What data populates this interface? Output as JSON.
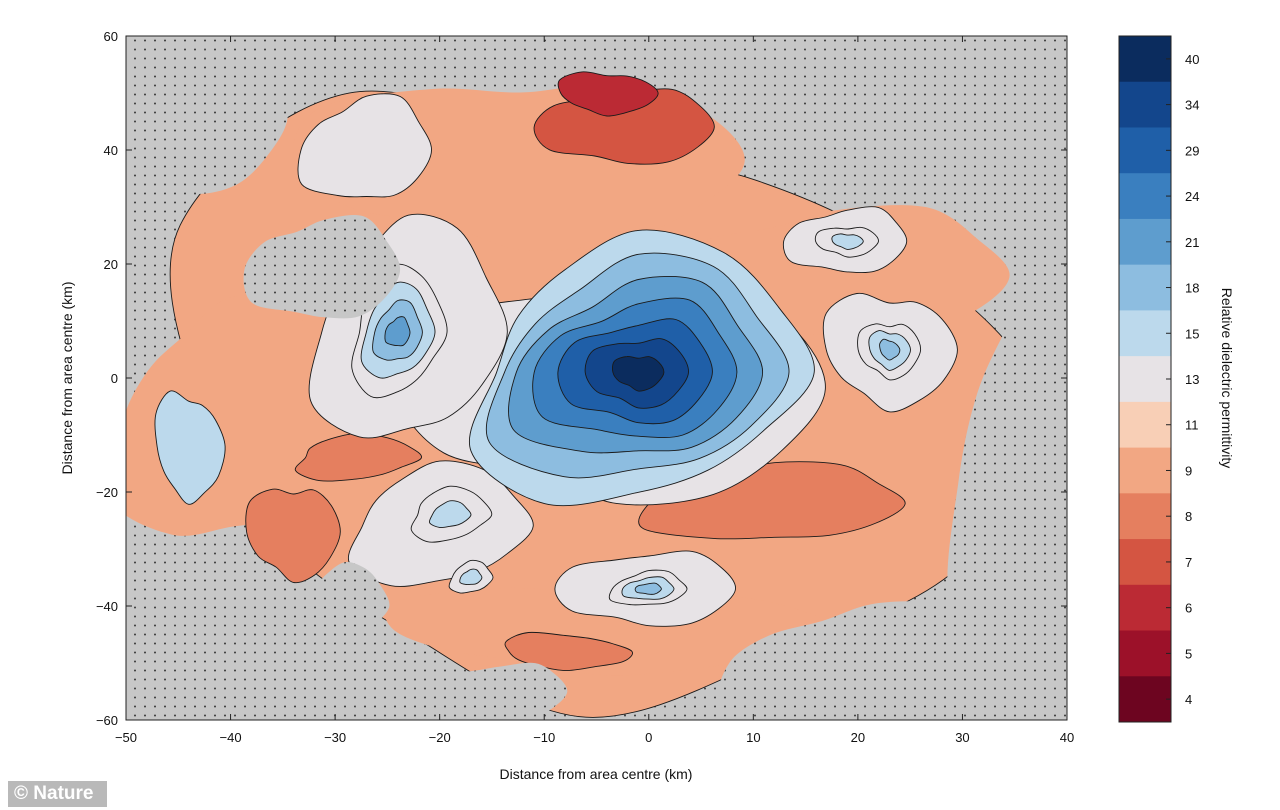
{
  "chart_data": {
    "type": "heatmap",
    "subtype": "filled-contour-map",
    "title": "",
    "xlabel": "Distance from area centre (km)",
    "ylabel": "Distance from area centre (km)",
    "xlim": [
      -50,
      40
    ],
    "ylim": [
      -60,
      60
    ],
    "xticks": [
      -50,
      -40,
      -30,
      -20,
      -10,
      0,
      10,
      20,
      30,
      40
    ],
    "yticks": [
      60,
      40,
      20,
      0,
      -20,
      -40,
      -60
    ],
    "colorbar": {
      "label": "Relative dielectric permittivity",
      "levels": [
        40,
        34,
        29,
        24,
        21,
        18,
        15,
        13,
        11,
        9,
        8,
        7,
        6,
        5,
        4
      ],
      "colors": [
        "#0b2c5e",
        "#13468c",
        "#1f5fa8",
        "#3a7fbf",
        "#5e9dce",
        "#8dbde0",
        "#bcd9ec",
        "#e7e3e6",
        "#f8cfb6",
        "#f2a783",
        "#e57f5f",
        "#d45542",
        "#bb2a34",
        "#9c1129",
        "#6d0520"
      ]
    },
    "no_data_color": "#c7c7c7",
    "features": [
      {
        "name": "central high-permittivity anomaly",
        "x": 0,
        "y": 0,
        "peak": 40
      },
      {
        "name": "western anomaly",
        "x": -24,
        "y": 8,
        "peak": 21
      },
      {
        "name": "eastern anomaly",
        "x": 23,
        "y": 5,
        "peak": 18
      },
      {
        "name": "southwest anomaly",
        "x": -20,
        "y": -24,
        "peak": 15
      },
      {
        "name": "southern anomaly",
        "x": 0,
        "y": -38,
        "peak": 18
      },
      {
        "name": "northeast anomaly",
        "x": 20,
        "y": 24,
        "peak": 15
      },
      {
        "name": "south-central small anomaly",
        "x": -17,
        "y": -35,
        "peak": 13
      }
    ]
  },
  "credit": "© Nature"
}
